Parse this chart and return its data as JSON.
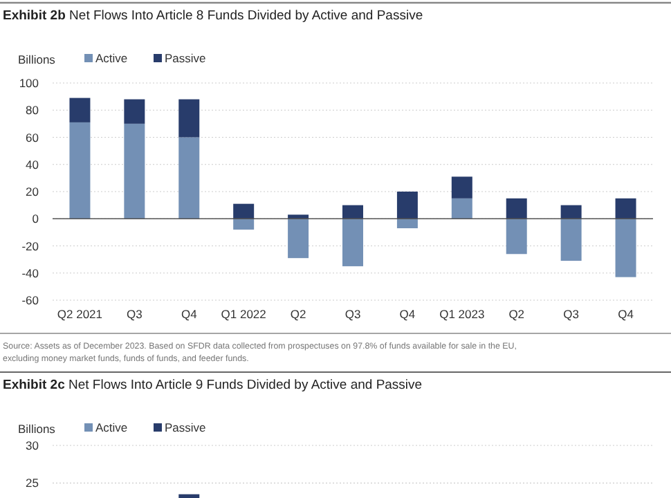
{
  "chart_data": [
    {
      "type": "bar",
      "stacked": true,
      "title": "Exhibit 2b Net Flows Into Article 8 Funds Divided by Active and Passive",
      "ylabel": "Billions",
      "categories": [
        "Q2 2021",
        "Q3",
        "Q4",
        "Q1 2022",
        "Q2",
        "Q3",
        "Q4",
        "Q1 2023",
        "Q2",
        "Q3",
        "Q4"
      ],
      "series": [
        {
          "name": "Active",
          "color": "#7390b5",
          "values": [
            71,
            70,
            60,
            -8,
            -29,
            -35,
            -7,
            15,
            -26,
            -31,
            -43
          ]
        },
        {
          "name": "Passive",
          "color": "#283c6b",
          "values": [
            18,
            18,
            28,
            11,
            3,
            10,
            20,
            16,
            15,
            10,
            15
          ]
        }
      ],
      "ylim": [
        -60,
        100
      ],
      "yticks": [
        -60,
        -40,
        -20,
        0,
        20,
        40,
        60,
        80,
        100
      ],
      "grid": "y",
      "legend": "top left",
      "annotations": [
        "Source: Assets as of December 2023. Based on SFDR data collected from prospectuses on 97.8% of funds available for sale in the EU, excluding money market funds, funds of funds, and feeder funds."
      ]
    },
    {
      "type": "bar",
      "stacked": true,
      "title": "Exhibit 2c Net Flows Into Article 9 Funds Divided by Active and Passive",
      "ylabel": "Billions",
      "categories": [
        null,
        null,
        null,
        null,
        null,
        null,
        null,
        null,
        null,
        null,
        null
      ],
      "series": [
        {
          "name": "Active",
          "color": "#7390b5",
          "values": [
            null,
            null,
            null,
            null,
            null,
            null,
            null,
            null,
            null,
            null,
            null
          ]
        },
        {
          "name": "Passive",
          "color": "#283c6b",
          "values": [
            null,
            null,
            23.5,
            null,
            null,
            null,
            null,
            null,
            null,
            null,
            null
          ]
        }
      ],
      "ylim": [
        23,
        30
      ],
      "yticks": [
        25,
        30
      ],
      "grid": "y",
      "legend": "top left"
    }
  ]
}
